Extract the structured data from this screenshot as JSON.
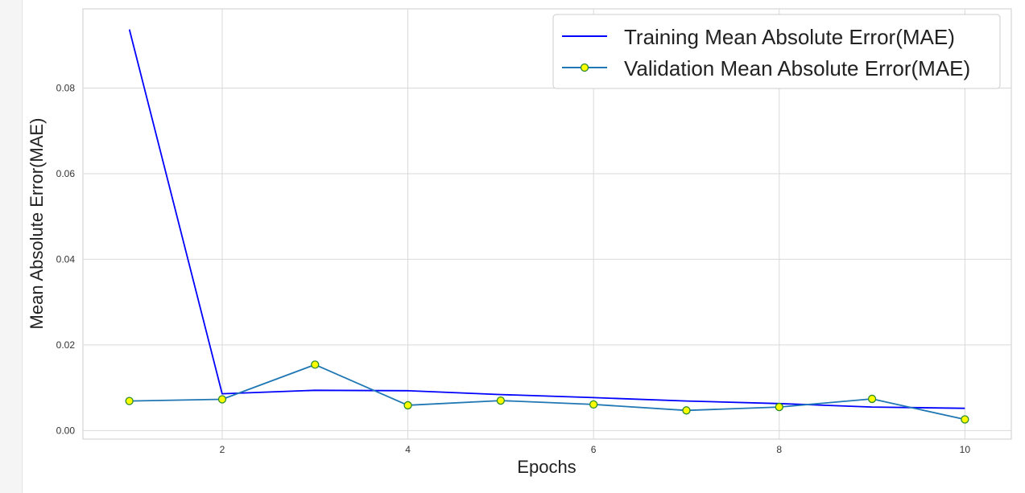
{
  "chart_data": {
    "type": "line",
    "title": "",
    "xlabel": "Epochs",
    "ylabel": "Mean Absolute Error(MAE)",
    "xlim": [
      0.5,
      10.5
    ],
    "ylim": [
      -0.002,
      0.0985
    ],
    "xticks": [
      2,
      4,
      6,
      8,
      10
    ],
    "yticks": [
      0.0,
      0.02,
      0.04,
      0.06,
      0.08
    ],
    "ytick_labels": [
      "0.00",
      "0.02",
      "0.04",
      "0.06",
      "0.08"
    ],
    "grid": true,
    "legend_position": "top-right",
    "x": [
      1,
      2,
      3,
      4,
      5,
      6,
      7,
      8,
      9,
      10
    ],
    "series": [
      {
        "name": "Training Mean Absolute Error(MAE)",
        "color": "#0000ff",
        "marker": "none",
        "values": [
          0.0937,
          0.0086,
          0.0094,
          0.0093,
          0.0084,
          0.0077,
          0.0069,
          0.0063,
          0.0055,
          0.0052
        ]
      },
      {
        "name": "Validation Mean Absolute Error(MAE)",
        "color": "#1f77b4",
        "marker": "circle",
        "marker_fill": "#ffff00",
        "marker_edge": "#2c8a2c",
        "values": [
          0.0069,
          0.0073,
          0.0154,
          0.0059,
          0.007,
          0.0061,
          0.0047,
          0.0055,
          0.0074,
          0.0026
        ]
      }
    ]
  }
}
